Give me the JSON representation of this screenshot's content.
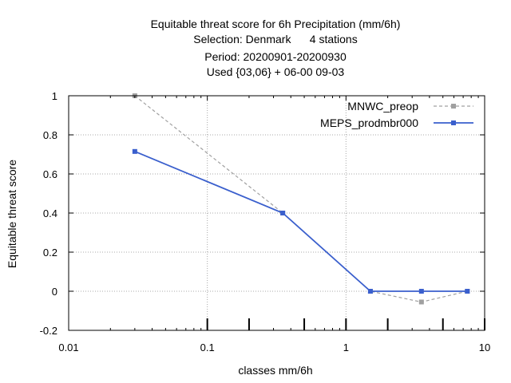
{
  "chart_data": {
    "type": "line",
    "title_lines": [
      "Equitable threat score  for 6h Precipitation (mm/6h)",
      "Selection: Denmark      4 stations",
      "Period: 20200901-20200930",
      "Used {03,06} + 06-00 09-03"
    ],
    "xlabel": "classes mm/6h",
    "ylabel": "Equitable threat score",
    "xscale": "log",
    "xlim": [
      0.01,
      10
    ],
    "ylim": [
      -0.2,
      1
    ],
    "xticks": [
      {
        "value": 0.01,
        "label": "0.01"
      },
      {
        "value": 0.1,
        "label": "0.1"
      },
      {
        "value": 1,
        "label": "1"
      },
      {
        "value": 10,
        "label": "10"
      }
    ],
    "yticks": [
      {
        "value": -0.2,
        "label": "-0.2"
      },
      {
        "value": 0,
        "label": "0"
      },
      {
        "value": 0.2,
        "label": "0.2"
      },
      {
        "value": 0.4,
        "label": "0.4"
      },
      {
        "value": 0.6,
        "label": "0.6"
      },
      {
        "value": 0.8,
        "label": "0.8"
      },
      {
        "value": 1,
        "label": "1"
      }
    ],
    "class_marks": [
      0.1,
      0.2,
      0.5,
      1,
      2,
      5,
      10
    ],
    "grid": true,
    "legend_position": "top-right",
    "series": [
      {
        "name": "MNWC_preop",
        "color": "#a0a0a0",
        "dashed": true,
        "x": [
          0.03,
          0.35,
          1.5,
          3.5,
          7.5
        ],
        "y": [
          1.0,
          0.4,
          0.0,
          -0.055,
          0.0
        ]
      },
      {
        "name": "MEPS_prodmbr000",
        "color": "#3a5fcd",
        "dashed": false,
        "x": [
          0.03,
          0.35,
          1.5,
          3.5,
          7.5
        ],
        "y": [
          0.715,
          0.4,
          0.0,
          0.0,
          0.0
        ]
      }
    ]
  }
}
